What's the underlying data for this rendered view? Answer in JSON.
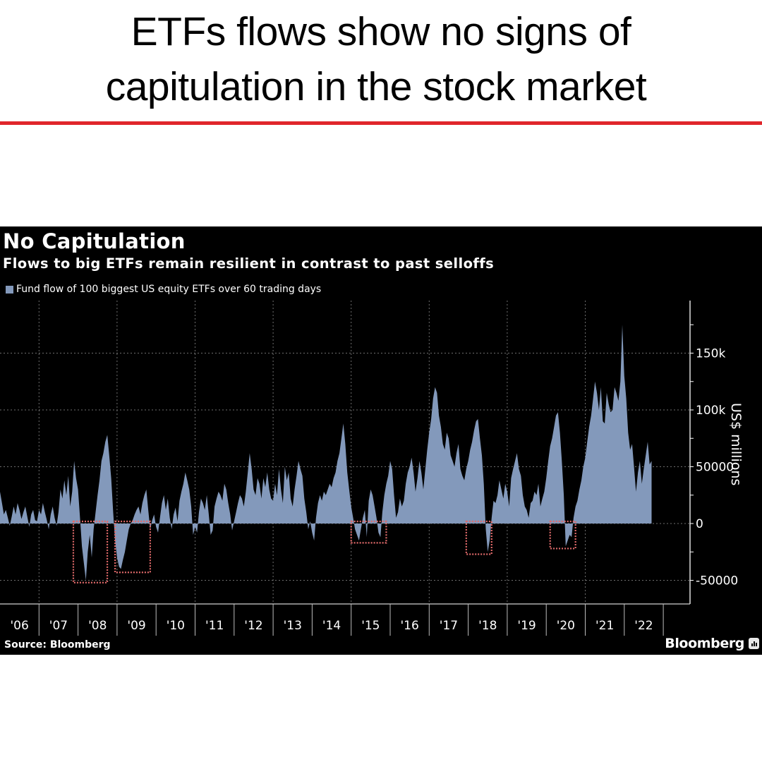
{
  "headline": {
    "line1": "ETFs flows show no signs of",
    "line2": "capitulation in the stock market"
  },
  "colors": {
    "rule": "#e0262b",
    "card_bg": "#000000",
    "series": "#8399bb",
    "highlight_box": "#e06a6a",
    "grid": "#8a8a8a",
    "axis": "#ffffff"
  },
  "chart": {
    "title": "No Capitulation",
    "subtitle": "Flows to big ETFs remain resilient in contrast to past selloffs",
    "legend": "Fund flow of 100 biggest US equity ETFs over 60 trading days",
    "y_axis_label": "US$ millions",
    "source": "Source: Bloomberg",
    "brand": "Bloomberg"
  },
  "chart_data": {
    "type": "area",
    "title": "No Capitulation",
    "subtitle": "Flows to big ETFs remain resilient in contrast to past selloffs",
    "xlabel": "",
    "ylabel": "US$ millions",
    "ylim": [
      -70000,
      195000
    ],
    "y_ticks": [
      -50000,
      0,
      50000,
      100000,
      150000
    ],
    "y_tick_labels": [
      "-50000",
      "0",
      "50000",
      "100k",
      "150k"
    ],
    "x_tick_labels": [
      "'06",
      "'07",
      "'08",
      "'09",
      "'10",
      "'11",
      "'12",
      "'13",
      "'14",
      "'15",
      "'16",
      "'17",
      "'18",
      "'19",
      "'20",
      "'21",
      "'22"
    ],
    "grid": true,
    "legend_position": "top-left",
    "series": [
      {
        "name": "Fund flow of 100 biggest US equity ETFs over 60 trading days",
        "unit": "US$ millions",
        "note": "approximate values read from chart, sampled ~every 3 weeks (x as fractional year)",
        "x": [
          2006.0,
          2006.05,
          2006.1,
          2006.15,
          2006.2,
          2006.25,
          2006.3,
          2006.35,
          2006.4,
          2006.45,
          2006.5,
          2006.55,
          2006.6,
          2006.65,
          2006.7,
          2006.75,
          2006.8,
          2006.85,
          2006.9,
          2006.95,
          2007.0,
          2007.05,
          2007.1,
          2007.15,
          2007.2,
          2007.25,
          2007.3,
          2007.35,
          2007.4,
          2007.45,
          2007.5,
          2007.55,
          2007.6,
          2007.65,
          2007.7,
          2007.75,
          2007.8,
          2007.85,
          2007.9,
          2007.95,
          2008.0,
          2008.05,
          2008.1,
          2008.15,
          2008.2,
          2008.25,
          2008.3,
          2008.35,
          2008.4,
          2008.45,
          2008.5,
          2008.55,
          2008.6,
          2008.65,
          2008.7,
          2008.75,
          2008.8,
          2008.85,
          2008.9,
          2008.95,
          2009.0,
          2009.05,
          2009.1,
          2009.15,
          2009.2,
          2009.25,
          2009.3,
          2009.35,
          2009.4,
          2009.45,
          2009.5,
          2009.55,
          2009.6,
          2009.65,
          2009.7,
          2009.75,
          2009.8,
          2009.85,
          2009.9,
          2009.95,
          2010.0,
          2010.05,
          2010.1,
          2010.15,
          2010.2,
          2010.25,
          2010.3,
          2010.35,
          2010.4,
          2010.45,
          2010.5,
          2010.55,
          2010.6,
          2010.65,
          2010.7,
          2010.75,
          2010.8,
          2010.85,
          2010.9,
          2010.95,
          2011.0,
          2011.05,
          2011.1,
          2011.15,
          2011.2,
          2011.25,
          2011.3,
          2011.35,
          2011.4,
          2011.45,
          2011.5,
          2011.55,
          2011.6,
          2011.65,
          2011.7,
          2011.75,
          2011.8,
          2011.85,
          2011.9,
          2011.95,
          2012.0,
          2012.05,
          2012.1,
          2012.15,
          2012.2,
          2012.25,
          2012.3,
          2012.35,
          2012.4,
          2012.45,
          2012.5,
          2012.55,
          2012.6,
          2012.65,
          2012.7,
          2012.75,
          2012.8,
          2012.85,
          2012.9,
          2012.95,
          2013.0,
          2013.05,
          2013.1,
          2013.15,
          2013.2,
          2013.25,
          2013.3,
          2013.35,
          2013.4,
          2013.45,
          2013.5,
          2013.55,
          2013.6,
          2013.65,
          2013.7,
          2013.75,
          2013.8,
          2013.85,
          2013.9,
          2013.95,
          2014.0,
          2014.05,
          2014.1,
          2014.15,
          2014.2,
          2014.25,
          2014.3,
          2014.35,
          2014.4,
          2014.45,
          2014.5,
          2014.55,
          2014.6,
          2014.65,
          2014.7,
          2014.75,
          2014.8,
          2014.85,
          2014.9,
          2014.95,
          2015.0,
          2015.05,
          2015.1,
          2015.15,
          2015.2,
          2015.25,
          2015.3,
          2015.35,
          2015.4,
          2015.45,
          2015.5,
          2015.55,
          2015.6,
          2015.65,
          2015.7,
          2015.75,
          2015.8,
          2015.85,
          2015.9,
          2015.95,
          2016.0,
          2016.05,
          2016.1,
          2016.15,
          2016.2,
          2016.25,
          2016.3,
          2016.35,
          2016.4,
          2016.45,
          2016.5,
          2016.55,
          2016.6,
          2016.65,
          2016.7,
          2016.75,
          2016.8,
          2016.85,
          2016.9,
          2016.95,
          2017.0,
          2017.05,
          2017.1,
          2017.15,
          2017.2,
          2017.25,
          2017.3,
          2017.35,
          2017.4,
          2017.45,
          2017.5,
          2017.55,
          2017.6,
          2017.65,
          2017.7,
          2017.75,
          2017.8,
          2017.85,
          2017.9,
          2017.95,
          2018.0,
          2018.05,
          2018.1,
          2018.15,
          2018.2,
          2018.25,
          2018.3,
          2018.35,
          2018.4,
          2018.45,
          2018.5,
          2018.55,
          2018.6,
          2018.65,
          2018.7,
          2018.75,
          2018.8,
          2018.85,
          2018.9,
          2018.95,
          2019.0,
          2019.05,
          2019.1,
          2019.15,
          2019.2,
          2019.25,
          2019.3,
          2019.35,
          2019.4,
          2019.45,
          2019.5,
          2019.55,
          2019.6,
          2019.65,
          2019.7,
          2019.75,
          2019.8,
          2019.85,
          2019.9,
          2019.95,
          2020.0,
          2020.05,
          2020.1,
          2020.15,
          2020.2,
          2020.25,
          2020.3,
          2020.35,
          2020.4,
          2020.45,
          2020.5,
          2020.55,
          2020.6,
          2020.65,
          2020.7,
          2020.75,
          2020.8,
          2020.85,
          2020.9,
          2020.95,
          2021.0,
          2021.05,
          2021.1,
          2021.15,
          2021.2,
          2021.25,
          2021.3,
          2021.35,
          2021.4,
          2021.45,
          2021.5,
          2021.55,
          2021.6,
          2021.65,
          2021.7,
          2021.75,
          2021.8,
          2021.85,
          2021.9,
          2021.95,
          2022.0,
          2022.05,
          2022.1,
          2022.15,
          2022.2,
          2022.25,
          2022.3,
          2022.35,
          2022.4,
          2022.45,
          2022.5,
          2022.55,
          2022.6,
          2022.65,
          2022.7
        ],
        "values": [
          28000,
          18000,
          8000,
          12000,
          5000,
          -2000,
          6000,
          15000,
          8000,
          18000,
          12000,
          4000,
          10000,
          15000,
          6000,
          -3000,
          8000,
          12000,
          3000,
          2000,
          12000,
          8000,
          18000,
          10000,
          3000,
          -5000,
          8000,
          15000,
          5000,
          -2000,
          10000,
          30000,
          22000,
          38000,
          25000,
          42000,
          15000,
          28000,
          55000,
          40000,
          30000,
          5000,
          -20000,
          -35000,
          -50000,
          -25000,
          -10000,
          -30000,
          -5000,
          10000,
          25000,
          38000,
          55000,
          62000,
          72000,
          78000,
          60000,
          40000,
          10000,
          -15000,
          -30000,
          -38000,
          -40000,
          -32000,
          -25000,
          -15000,
          -5000,
          0,
          3000,
          8000,
          12000,
          15000,
          8000,
          18000,
          25000,
          30000,
          12000,
          -5000,
          3000,
          8000,
          -3000,
          -8000,
          5000,
          18000,
          25000,
          12000,
          22000,
          5000,
          -5000,
          8000,
          14000,
          2000,
          20000,
          28000,
          35000,
          45000,
          38000,
          30000,
          15000,
          -10000,
          -3000,
          -8000,
          10000,
          22000,
          18000,
          12000,
          25000,
          8000,
          -10000,
          -6000,
          15000,
          22000,
          28000,
          25000,
          20000,
          35000,
          30000,
          18000,
          8000,
          -6000,
          2000,
          10000,
          18000,
          25000,
          22000,
          15000,
          28000,
          45000,
          62000,
          48000,
          30000,
          25000,
          40000,
          35000,
          22000,
          40000,
          32000,
          45000,
          30000,
          22000,
          20000,
          35000,
          25000,
          48000,
          30000,
          18000,
          50000,
          38000,
          45000,
          22000,
          15000,
          30000,
          42000,
          55000,
          48000,
          42000,
          22000,
          10000,
          -5000,
          2000,
          -8000,
          -15000,
          5000,
          18000,
          25000,
          20000,
          28000,
          25000,
          30000,
          35000,
          32000,
          40000,
          45000,
          55000,
          62000,
          75000,
          88000,
          70000,
          45000,
          30000,
          15000,
          5000,
          -5000,
          -10000,
          -15000,
          -5000,
          5000,
          12000,
          -12000,
          20000,
          30000,
          25000,
          15000,
          5000,
          -8000,
          -12000,
          10000,
          25000,
          35000,
          42000,
          55000,
          48000,
          25000,
          5000,
          10000,
          22000,
          15000,
          20000,
          35000,
          45000,
          50000,
          58000,
          45000,
          28000,
          40000,
          55000,
          45000,
          30000,
          48000,
          65000,
          80000,
          92000,
          110000,
          120000,
          115000,
          95000,
          85000,
          70000,
          65000,
          80000,
          75000,
          60000,
          55000,
          50000,
          62000,
          70000,
          48000,
          42000,
          38000,
          48000,
          55000,
          65000,
          72000,
          82000,
          90000,
          92000,
          75000,
          60000,
          35000,
          -5000,
          -25000,
          -15000,
          5000,
          20000,
          18000,
          25000,
          38000,
          30000,
          22000,
          35000,
          28000,
          15000,
          40000,
          48000,
          55000,
          62000,
          48000,
          42000,
          25000,
          15000,
          12000,
          5000,
          18000,
          20000,
          28000,
          25000,
          35000,
          15000,
          22000,
          28000,
          40000,
          55000,
          68000,
          75000,
          85000,
          95000,
          98000,
          80000,
          55000,
          25000,
          -20000,
          -15000,
          -10000,
          -12000,
          5000,
          15000,
          20000,
          30000,
          38000,
          50000,
          58000,
          72000,
          85000,
          95000,
          110000,
          125000,
          115000,
          100000,
          120000,
          90000,
          88000,
          115000,
          105000,
          98000,
          100000,
          120000,
          115000,
          108000,
          125000,
          175000,
          130000,
          110000,
          80000,
          65000,
          70000,
          50000,
          28000,
          45000,
          55000,
          35000,
          48000,
          60000,
          72000,
          52000,
          55000
        ]
      }
    ],
    "annotations": [
      {
        "type": "dotted-box",
        "label": "selloff 2008",
        "x_range": [
          2007.88,
          2008.75
        ],
        "y_range": [
          -52000,
          0
        ]
      },
      {
        "type": "dotted-box",
        "label": "selloff 2009",
        "x_range": [
          2008.95,
          2009.85
        ],
        "y_range": [
          -43000,
          0
        ]
      },
      {
        "type": "dotted-box",
        "label": "selloff 2015",
        "x_range": [
          2015.0,
          2015.9
        ],
        "y_range": [
          -17000,
          0
        ]
      },
      {
        "type": "dotted-box",
        "label": "selloff 2018",
        "x_range": [
          2017.95,
          2018.6
        ],
        "y_range": [
          -27000,
          0
        ]
      },
      {
        "type": "dotted-box",
        "label": "selloff 2020",
        "x_range": [
          2020.1,
          2020.75
        ],
        "y_range": [
          -22000,
          0
        ]
      }
    ]
  }
}
